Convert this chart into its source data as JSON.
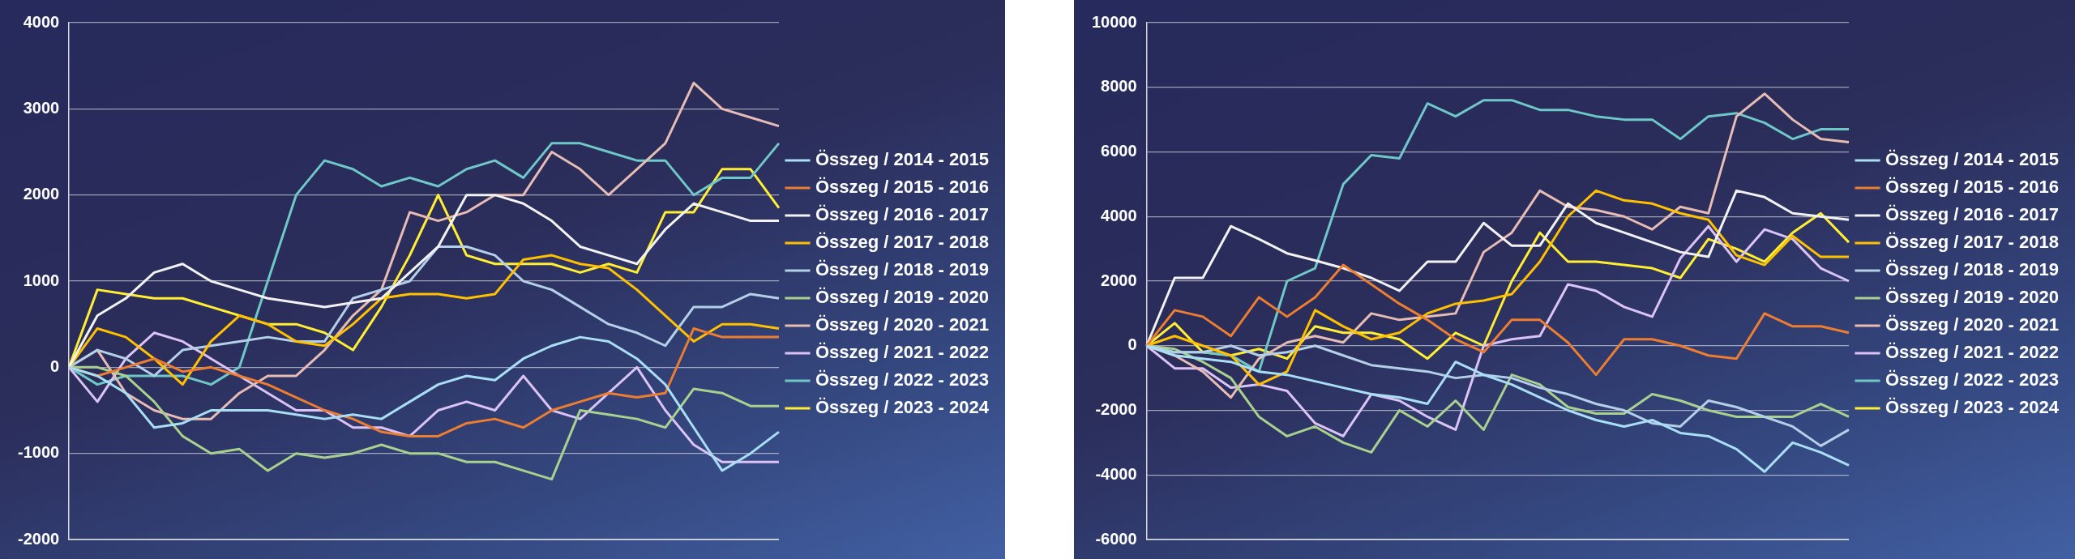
{
  "chart_data": [
    {
      "type": "line",
      "categories": [
        null,
        null,
        null,
        null,
        null,
        null,
        null,
        null,
        null,
        null,
        null,
        null,
        null,
        null,
        null,
        null,
        null,
        null,
        null,
        null,
        null,
        null,
        null,
        null,
        null,
        null
      ],
      "ylim": [
        -2000,
        4000
      ],
      "yticks": [
        -2000,
        -1000,
        0,
        1000,
        2000,
        3000,
        4000
      ],
      "grid": "y",
      "legend": "right",
      "tick_labels": "y",
      "marker": "none",
      "line_style": "solid",
      "series": [
        {
          "name": "Összeg / 2014 - 2015",
          "color": "#a9dff5",
          "values": [
            0,
            -100,
            -300,
            -700,
            -650,
            -500,
            -500,
            -500,
            -550,
            -600,
            -550,
            -600,
            -400,
            -200,
            -100,
            -150,
            100,
            250,
            350,
            300,
            100,
            -200,
            -700,
            -1200,
            -1000,
            -750
          ]
        },
        {
          "name": "Összeg / 2015 - 2016",
          "color": "#ed7d31",
          "values": [
            0,
            -100,
            0,
            100,
            -50,
            0,
            -100,
            -200,
            -350,
            -500,
            -600,
            -750,
            -800,
            -800,
            -650,
            -600,
            -700,
            -500,
            -400,
            -300,
            -350,
            -300,
            450,
            350,
            350,
            350
          ]
        },
        {
          "name": "Összeg / 2016 - 2017",
          "color": "#f2f2f2",
          "values": [
            0,
            600,
            800,
            1100,
            1200,
            1000,
            900,
            800,
            750,
            700,
            750,
            800,
            1100,
            1400,
            2000,
            2000,
            1900,
            1700,
            1400,
            1300,
            1200,
            1600,
            1900,
            1800,
            1700,
            1700
          ]
        },
        {
          "name": "Összeg / 2017 - 2018",
          "color": "#ffc000",
          "values": [
            0,
            450,
            350,
            100,
            -200,
            300,
            600,
            500,
            300,
            250,
            500,
            800,
            850,
            850,
            800,
            850,
            1250,
            1300,
            1200,
            1150,
            900,
            600,
            300,
            500,
            500,
            450
          ]
        },
        {
          "name": "Összeg / 2018 - 2019",
          "color": "#b4cfe8",
          "values": [
            0,
            200,
            100,
            -100,
            200,
            250,
            300,
            350,
            300,
            300,
            800,
            900,
            1000,
            1400,
            1400,
            1300,
            1000,
            900,
            700,
            500,
            400,
            250,
            700,
            700,
            850,
            800
          ]
        },
        {
          "name": "Összeg / 2019 - 2020",
          "color": "#a9d18e",
          "values": [
            0,
            0,
            -100,
            -400,
            -800,
            -1000,
            -950,
            -1200,
            -1000,
            -1050,
            -1000,
            -900,
            -1000,
            -1000,
            -1100,
            -1100,
            -1200,
            -1300,
            -500,
            -550,
            -600,
            -700,
            -250,
            -300,
            -450,
            -450
          ]
        },
        {
          "name": "Összeg / 2020 - 2021",
          "color": "#e6bcb4",
          "values": [
            0,
            200,
            -300,
            -500,
            -600,
            -600,
            -300,
            -100,
            -100,
            200,
            600,
            900,
            1800,
            1700,
            1800,
            2000,
            2000,
            2500,
            2300,
            2000,
            2300,
            2600,
            3300,
            3000,
            2900,
            2800
          ]
        },
        {
          "name": "Összeg / 2021 - 2022",
          "color": "#dcc3f5",
          "values": [
            0,
            -400,
            100,
            400,
            300,
            100,
            -100,
            -300,
            -500,
            -500,
            -700,
            -700,
            -800,
            -500,
            -400,
            -500,
            -100,
            -500,
            -600,
            -300,
            0,
            -500,
            -900,
            -1100,
            -1100,
            -1100
          ]
        },
        {
          "name": "Összeg / 2022 - 2023",
          "color": "#6fc8c8",
          "values": [
            0,
            -200,
            -100,
            -100,
            -100,
            -200,
            0,
            1000,
            2000,
            2400,
            2300,
            2100,
            2200,
            2100,
            2300,
            2400,
            2200,
            2600,
            2600,
            2500,
            2400,
            2400,
            2000,
            2200,
            2200,
            2600
          ]
        },
        {
          "name": "Összeg / 2023 - 2024",
          "color": "#ffee33",
          "values": [
            0,
            900,
            850,
            800,
            800,
            700,
            600,
            500,
            500,
            400,
            200,
            700,
            1300,
            2000,
            1300,
            1200,
            1200,
            1200,
            1100,
            1200,
            1100,
            1800,
            1800,
            2300,
            2300,
            1850
          ]
        }
      ]
    },
    {
      "type": "line",
      "categories": [
        null,
        null,
        null,
        null,
        null,
        null,
        null,
        null,
        null,
        null,
        null,
        null,
        null,
        null,
        null,
        null,
        null,
        null,
        null,
        null,
        null,
        null,
        null,
        null,
        null,
        null
      ],
      "ylim": [
        -6000,
        10000
      ],
      "yticks": [
        -6000,
        -4000,
        -2000,
        0,
        2000,
        4000,
        6000,
        8000,
        10000
      ],
      "grid": "y",
      "legend": "right",
      "tick_labels": "y",
      "marker": "none",
      "line_style": "solid",
      "series": [
        {
          "name": "Összeg / 2014 - 2015",
          "color": "#a9dff5",
          "values": [
            0,
            -300,
            -400,
            -500,
            -800,
            -900,
            -1100,
            -1300,
            -1500,
            -1600,
            -1800,
            -500,
            -900,
            -1200,
            -1600,
            -2000,
            -2300,
            -2500,
            -2300,
            -2700,
            -2800,
            -3200,
            -3900,
            -3000,
            -3300,
            -3700
          ]
        },
        {
          "name": "Összeg / 2015 - 2016",
          "color": "#ed7d31",
          "values": [
            0,
            1100,
            900,
            300,
            1500,
            900,
            1500,
            2500,
            1900,
            1300,
            800,
            200,
            -200,
            800,
            800,
            100,
            -900,
            200,
            200,
            0,
            -300,
            -400,
            1000,
            600,
            600,
            400
          ]
        },
        {
          "name": "Összeg / 2016 - 2017",
          "color": "#f2f2f2",
          "values": [
            0,
            2100,
            2100,
            3700,
            3300,
            2860,
            2640,
            2400,
            2100,
            1700,
            2600,
            2600,
            3800,
            3100,
            3100,
            4400,
            3800,
            3500,
            3200,
            2900,
            2750,
            4800,
            4600,
            4100,
            4000,
            3900
          ]
        },
        {
          "name": "Összeg / 2017 - 2018",
          "color": "#ffc000",
          "values": [
            0,
            300,
            0,
            -300,
            -1200,
            -800,
            1100,
            600,
            200,
            400,
            1000,
            1300,
            1400,
            1600,
            2600,
            4000,
            4800,
            4500,
            4400,
            4100,
            3900,
            2800,
            2500,
            3400,
            2750,
            2750
          ]
        },
        {
          "name": "Összeg / 2018 - 2019",
          "color": "#b4cfe8",
          "values": [
            0,
            -200,
            -200,
            0,
            -300,
            -200,
            0,
            -300,
            -600,
            -700,
            -800,
            -1000,
            -900,
            -1000,
            -1300,
            -1500,
            -1800,
            -2000,
            -2400,
            -2500,
            -1700,
            -1900,
            -2200,
            -2500,
            -3100,
            -2600
          ]
        },
        {
          "name": "Összeg / 2019 - 2020",
          "color": "#a9d18e",
          "values": [
            0,
            -100,
            -500,
            -1000,
            -2200,
            -2800,
            -2500,
            -3000,
            -3300,
            -2000,
            -2500,
            -1700,
            -2600,
            -900,
            -1200,
            -1900,
            -2100,
            -2100,
            -1500,
            -1700,
            -2000,
            -2200,
            -2200,
            -2200,
            -1800,
            -2200
          ]
        },
        {
          "name": "Összeg / 2020 - 2021",
          "color": "#e6bcb4",
          "values": [
            0,
            -300,
            -800,
            -1600,
            -400,
            100,
            300,
            100,
            1000,
            800,
            900,
            1000,
            2900,
            3500,
            4800,
            4300,
            4200,
            4000,
            3600,
            4300,
            4100,
            7100,
            7800,
            7000,
            6400,
            6300
          ]
        },
        {
          "name": "Összeg / 2021 - 2022",
          "color": "#dcc3f5",
          "values": [
            0,
            -700,
            -700,
            -1300,
            -1200,
            -1400,
            -2400,
            -2800,
            -1500,
            -1700,
            -2200,
            -2600,
            0,
            200,
            300,
            1900,
            1700,
            1200,
            900,
            2700,
            3700,
            2600,
            3600,
            3300,
            2400,
            2000
          ]
        },
        {
          "name": "Összeg / 2022 - 2023",
          "color": "#6fc8c8",
          "values": [
            0,
            -200,
            -200,
            -300,
            -800,
            2000,
            2400,
            5000,
            5900,
            5800,
            7500,
            7100,
            7600,
            7600,
            7300,
            7300,
            7100,
            7000,
            7000,
            6400,
            7100,
            7200,
            6900,
            6400,
            6700,
            6700
          ]
        },
        {
          "name": "Összeg / 2023 - 2024",
          "color": "#ffee33",
          "values": [
            0,
            700,
            -200,
            -300,
            -100,
            -400,
            600,
            400,
            400,
            200,
            -400,
            400,
            0,
            2000,
            3500,
            2600,
            2600,
            2500,
            2400,
            2100,
            3300,
            3000,
            2600,
            3500,
            4100,
            3200
          ]
        }
      ]
    }
  ]
}
